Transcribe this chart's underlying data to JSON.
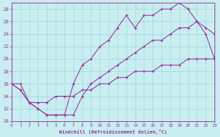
{
  "xlabel": "Windchill (Refroidissement éolien,°C)",
  "bg_color": "#c8eef0",
  "grid_color": "#a0d4d8",
  "line_color": "#993399",
  "spine_color": "#993399",
  "xmin": 0,
  "xmax": 23,
  "ymin": 10,
  "ymax": 29,
  "yticks": [
    10,
    12,
    14,
    16,
    18,
    20,
    22,
    24,
    26,
    28
  ],
  "xticks": [
    0,
    1,
    2,
    3,
    4,
    5,
    6,
    7,
    8,
    9,
    10,
    11,
    12,
    13,
    14,
    15,
    16,
    17,
    18,
    19,
    20,
    21,
    22,
    23
  ],
  "series": [
    {
      "x": [
        0,
        1,
        2,
        3,
        4,
        5,
        6,
        7,
        8,
        9,
        10,
        11,
        12,
        13,
        14,
        15,
        16,
        17,
        18,
        19,
        20,
        21,
        22,
        23
      ],
      "y": [
        16,
        15,
        13,
        12,
        11,
        11,
        11,
        16,
        19,
        20,
        22,
        23,
        25,
        27,
        25,
        27,
        27,
        28,
        28,
        29,
        28,
        26,
        25,
        24
      ]
    },
    {
      "x": [
        0,
        1,
        2,
        3,
        4,
        5,
        6,
        7,
        8,
        9,
        10,
        11,
        12,
        13,
        14,
        15,
        16,
        17,
        18,
        19,
        20,
        21,
        22,
        23
      ],
      "y": [
        16,
        15,
        13,
        12,
        11,
        11,
        11,
        11,
        14,
        16,
        17,
        18,
        19,
        20,
        21,
        22,
        23,
        23,
        24,
        25,
        25,
        26,
        24,
        20
      ]
    },
    {
      "x": [
        0,
        1,
        2,
        3,
        4,
        5,
        6,
        7,
        8,
        9,
        10,
        11,
        12,
        13,
        14,
        15,
        16,
        17,
        18,
        19,
        20,
        21,
        22,
        23
      ],
      "y": [
        16,
        16,
        13,
        13,
        13,
        14,
        14,
        14,
        15,
        15,
        16,
        16,
        17,
        17,
        18,
        18,
        18,
        19,
        19,
        19,
        20,
        20,
        20,
        20
      ]
    }
  ]
}
